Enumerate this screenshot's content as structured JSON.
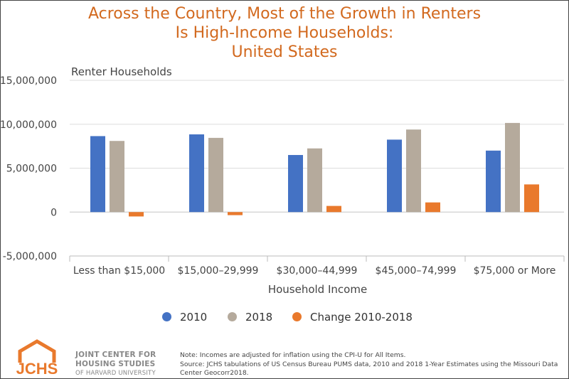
{
  "title_lines": [
    "Across the Country, Most of the Growth in Renters",
    "Is High-Income Households:",
    "United States"
  ],
  "colors": {
    "title": "#d2691e",
    "s2010": "#4472c4",
    "s2018": "#b5aa9c",
    "change": "#e9792c",
    "grid": "#dddddd",
    "logo": "#e9792c"
  },
  "chart_data": {
    "type": "bar",
    "title": "Across the Country, Most of the Growth in Renters Is High-Income Households: United States",
    "ylabel": "Renter Households",
    "xlabel": "Household Income",
    "ylim": [
      -5000000,
      15000000
    ],
    "yticks": [
      -5000000,
      0,
      5000000,
      10000000,
      15000000
    ],
    "ytick_labels": [
      "-5,000,000",
      "0",
      "5,000,000",
      "10,000,000",
      "15,000,000"
    ],
    "categories": [
      "Less than $15,000",
      "$15,000–29,999",
      "$30,000–44,999",
      "$45,000–74,999",
      "$75,000 or More"
    ],
    "series": [
      {
        "name": "2010",
        "color": "#4472c4",
        "values": [
          8650000,
          8850000,
          6500000,
          8250000,
          7000000
        ]
      },
      {
        "name": "2018",
        "color": "#b5aa9c",
        "values": [
          8100000,
          8450000,
          7250000,
          9400000,
          10150000
        ]
      },
      {
        "name": "Change 2010-2018",
        "color": "#e9792c",
        "values": [
          -500000,
          -350000,
          700000,
          1100000,
          3150000
        ]
      }
    ],
    "grid": true,
    "legend_position": "bottom"
  },
  "logo": {
    "text": "JCHS",
    "icon": "house-outline-icon"
  },
  "org_lines": [
    "JOINT CENTER FOR",
    "HOUSING STUDIES",
    "OF HARVARD UNIVERSITY"
  ],
  "note_lines": [
    "Note: Incomes are adjusted for inflation using the CPI-U for All Items.",
    "Source: JCHS tabulations of US Census Bureau PUMS data, 2010 and 2018 1-Year Estimates using the Missouri Data",
    "Center Geocorr2018."
  ]
}
